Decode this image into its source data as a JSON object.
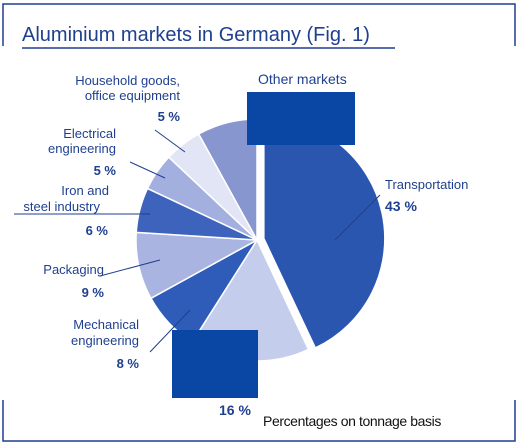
{
  "chart_data": {
    "type": "pie",
    "title": "Aluminium markets in Germany (Fig. 1)",
    "note": "Percentages on tonnage basis",
    "unit": "%",
    "slices": [
      {
        "label": "Transportation",
        "pct_label": "43 %",
        "value": 43,
        "color": "#2b56b0"
      },
      {
        "label": "",
        "pct_label": "16 %",
        "value": 16,
        "color": "#c5cdec"
      },
      {
        "label": "Mechanical engineering",
        "pct_label": "8 %",
        "value": 8,
        "color": "#2e5cb8"
      },
      {
        "label": "Packaging",
        "pct_label": "9 %",
        "value": 9,
        "color": "#a9b5e0"
      },
      {
        "label": "Iron and steel industry",
        "pct_label": "6 %",
        "value": 6,
        "color": "#3d63bc"
      },
      {
        "label": "Electrical engineering",
        "pct_label": "5 %",
        "value": 5,
        "color": "#a3afdf"
      },
      {
        "label": "Household goods, office equipment",
        "pct_label": "5 %",
        "value": 5,
        "color": "#e1e5f5"
      },
      {
        "label": "Other markets",
        "pct_label": "",
        "value": 8,
        "color": "#8896d0"
      }
    ]
  },
  "labels": {
    "transport": "Transportation",
    "household_1": "Household goods,",
    "household_2": "office equipment",
    "electrical_1": "Electrical",
    "electrical_2": "engineering",
    "iron_1": "Iron and",
    "iron_2": "steel industry",
    "packaging": "Packaging",
    "mechanical_1": "Mechanical",
    "mechanical_2": "engineering",
    "other": "Other markets"
  },
  "colors": {
    "accent": "#1f3f8f",
    "dark_box": "#0a47a5",
    "frame": "#1f3f8f"
  }
}
